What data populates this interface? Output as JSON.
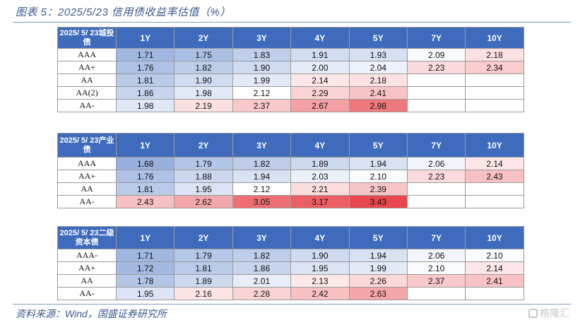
{
  "title": "图表 5：2025/5/23 信用债收益率估值（%）",
  "footer": {
    "source": "资料来源：Wind，国盛证券研究所",
    "watermark": "格隆汇"
  },
  "colors": {
    "header_bg": "#3f6bbd",
    "low_end": "#8faadc",
    "high_end": "#e8474d"
  },
  "tables": [
    {
      "corner": "2025/ 5/ 23城投债",
      "columns": [
        "1Y",
        "2Y",
        "3Y",
        "4Y",
        "5Y",
        "7Y",
        "10Y"
      ],
      "rows": [
        {
          "label": "AAA",
          "values": [
            "1.71",
            "1.75",
            "1.83",
            "1.91",
            "1.93",
            "2.09",
            "2.18"
          ]
        },
        {
          "label": "AA+",
          "values": [
            "1.76",
            "1.82",
            "1.90",
            "2.00",
            "2.04",
            "2.23",
            "2.34"
          ]
        },
        {
          "label": "AA",
          "values": [
            "1.81",
            "1.90",
            "1.99",
            "2.14",
            "2.18",
            "",
            ""
          ]
        },
        {
          "label": "AA(2)",
          "values": [
            "1.86",
            "1.98",
            "2.12",
            "2.29",
            "2.41",
            "",
            ""
          ]
        },
        {
          "label": "AA-",
          "values": [
            "1.98",
            "2.19",
            "2.37",
            "2.67",
            "2.98",
            "",
            ""
          ]
        }
      ]
    },
    {
      "corner": "2025/ 5/ 23产业债",
      "columns": [
        "1Y",
        "2Y",
        "3Y",
        "4Y",
        "5Y",
        "7Y",
        "10Y"
      ],
      "rows": [
        {
          "label": "AAA",
          "values": [
            "1.68",
            "1.79",
            "1.82",
            "1.89",
            "1.94",
            "2.06",
            "2.14"
          ]
        },
        {
          "label": "AA+",
          "values": [
            "1.76",
            "1.88",
            "1.94",
            "2.03",
            "2.10",
            "2.23",
            "2.43"
          ]
        },
        {
          "label": "AA",
          "values": [
            "1.81",
            "1.95",
            "2.12",
            "2.21",
            "2.39",
            "",
            ""
          ]
        },
        {
          "label": "AA-",
          "values": [
            "2.43",
            "2.62",
            "3.05",
            "3.17",
            "3.43",
            "",
            ""
          ]
        }
      ]
    },
    {
      "corner": "2025/ 5/ 23二级资本债",
      "columns": [
        "1Y",
        "2Y",
        "3Y",
        "4Y",
        "5Y",
        "7Y",
        "10Y"
      ],
      "rows": [
        {
          "label": "AAA-",
          "values": [
            "1.71",
            "1.79",
            "1.82",
            "1.90",
            "1.94",
            "2.06",
            "2.10"
          ]
        },
        {
          "label": "AA+",
          "values": [
            "1.72",
            "1.81",
            "1.86",
            "1.95",
            "1.99",
            "2.10",
            "2.14"
          ]
        },
        {
          "label": "AA",
          "values": [
            "1.78",
            "1.89",
            "2.01",
            "2.13",
            "2.26",
            "2.37",
            "2.41"
          ]
        },
        {
          "label": "AA-",
          "values": [
            "1.95",
            "2.16",
            "2.28",
            "2.42",
            "2.63",
            "",
            ""
          ]
        }
      ]
    }
  ]
}
